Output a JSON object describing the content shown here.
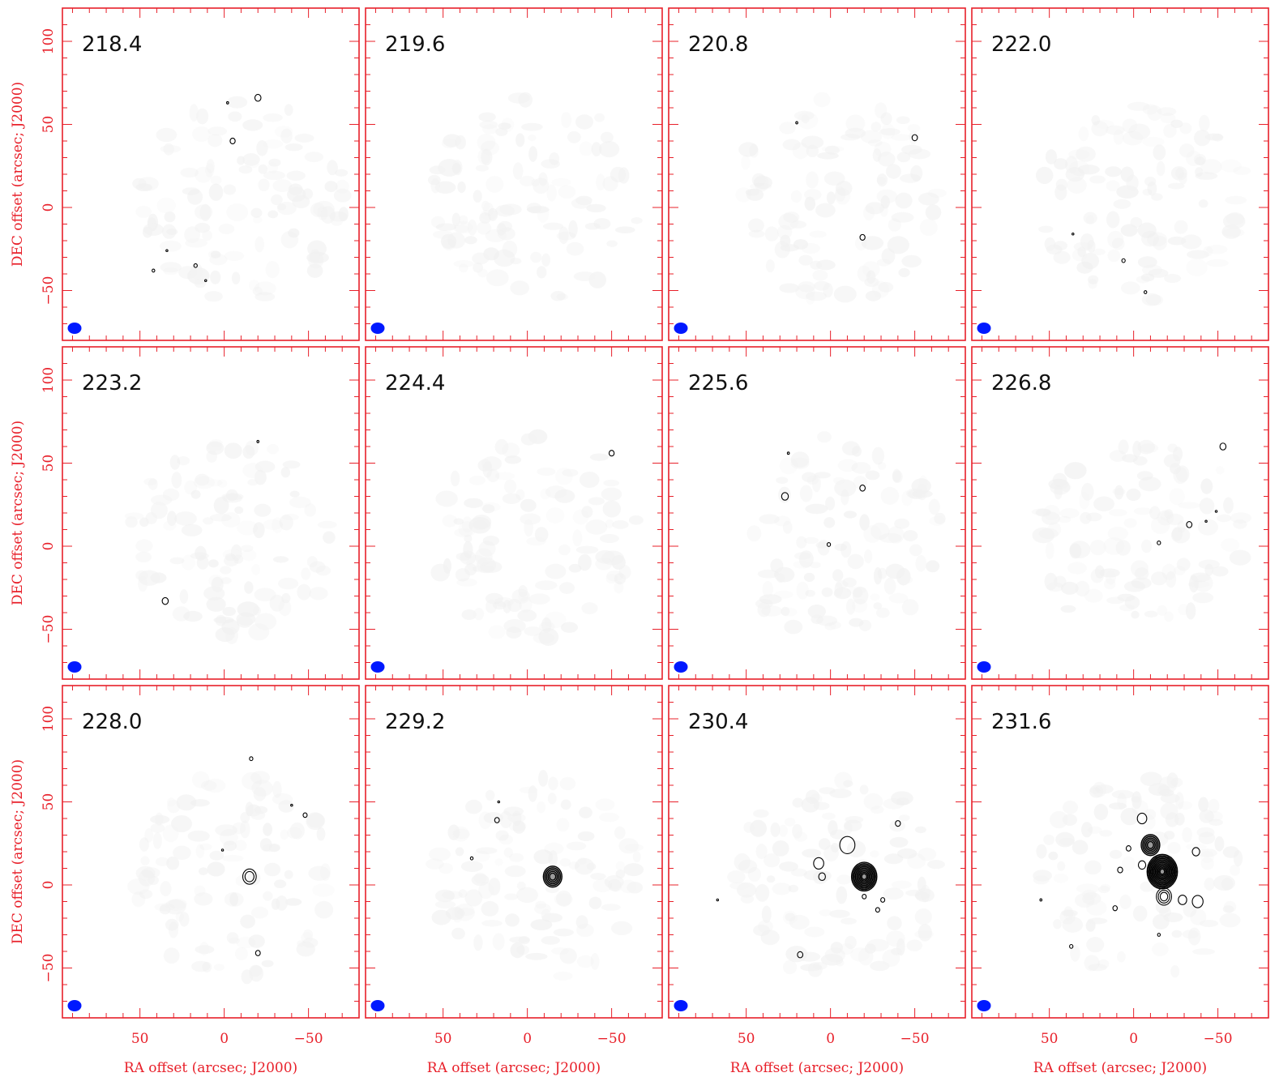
{
  "chart_data": {
    "type": "contour-map-grid",
    "xlabel": "RA offset (arcsec; J2000)",
    "ylabel": "DEC offset (arcsec; J2000)",
    "xlim": [
      96,
      -80
    ],
    "ylim": [
      -80,
      120
    ],
    "xticks": [
      50,
      0,
      -50
    ],
    "xtick_labels": [
      "50",
      "0",
      "−50"
    ],
    "yticks": [
      100,
      50,
      0,
      -50
    ],
    "ytick_labels": [
      "100",
      "50",
      "0",
      "−50"
    ],
    "colors": {
      "axis": "#e8202a",
      "beam": "#0019ff",
      "contour": "#000000",
      "noise": "#e6e6e6"
    },
    "panels": [
      {
        "label": "218.4",
        "features": [
          {
            "x": -20,
            "y": 66,
            "r": 1.8
          },
          {
            "x": -2,
            "y": 63,
            "r": 0.6
          },
          {
            "x": -5,
            "y": 40,
            "r": 1.5
          },
          {
            "x": 34,
            "y": -26,
            "r": 0.5
          },
          {
            "x": 42,
            "y": -38,
            "r": 0.8
          },
          {
            "x": 17,
            "y": -35,
            "r": 1.0
          },
          {
            "x": 11,
            "y": -44,
            "r": 0.5
          }
        ]
      },
      {
        "label": "219.6",
        "features": []
      },
      {
        "label": "220.8",
        "features": [
          {
            "x": 20,
            "y": 51,
            "r": 0.6
          },
          {
            "x": -50,
            "y": 42,
            "r": 1.6
          },
          {
            "x": -19,
            "y": -18,
            "r": 1.5
          }
        ]
      },
      {
        "label": "222.0",
        "features": [
          {
            "x": 36,
            "y": -16,
            "r": 0.5
          },
          {
            "x": 6,
            "y": -32,
            "r": 1.0
          },
          {
            "x": -7,
            "y": -51,
            "r": 0.8
          }
        ]
      },
      {
        "label": "223.2",
        "features": [
          {
            "x": -20,
            "y": 63,
            "r": 0.6
          },
          {
            "x": 35,
            "y": -33,
            "r": 1.8
          }
        ]
      },
      {
        "label": "224.4",
        "features": [
          {
            "x": -50,
            "y": 56,
            "r": 1.5
          }
        ]
      },
      {
        "label": "225.6",
        "features": [
          {
            "x": 25,
            "y": 56,
            "r": 0.6
          },
          {
            "x": 27,
            "y": 30,
            "r": 2.0
          },
          {
            "x": -19,
            "y": 35,
            "r": 1.6
          },
          {
            "x": 1,
            "y": 1,
            "r": 1.0
          }
        ]
      },
      {
        "label": "226.8",
        "features": [
          {
            "x": -53,
            "y": 60,
            "r": 1.8
          },
          {
            "x": -33,
            "y": 13,
            "r": 1.6
          },
          {
            "x": -43,
            "y": 15,
            "r": 0.5
          },
          {
            "x": -49,
            "y": 21,
            "r": 0.5
          },
          {
            "x": -15,
            "y": 2,
            "r": 1.0
          }
        ]
      },
      {
        "label": "228.0",
        "features": [
          {
            "x": -16,
            "y": 76,
            "r": 1.0
          },
          {
            "x": -40,
            "y": 48,
            "r": 0.5
          },
          {
            "x": -48,
            "y": 42,
            "r": 1.2
          },
          {
            "x": 1,
            "y": 21,
            "r": 0.5
          },
          {
            "x": -15,
            "y": 5,
            "r": 4.0,
            "n": 2
          },
          {
            "x": -20,
            "y": -41,
            "r": 1.4
          }
        ]
      },
      {
        "label": "229.2",
        "features": [
          {
            "x": 17,
            "y": 50,
            "r": 0.5
          },
          {
            "x": 18,
            "y": 39,
            "r": 1.4
          },
          {
            "x": 33,
            "y": 16,
            "r": 0.8
          },
          {
            "x": -15,
            "y": 5,
            "r": 5.5,
            "n": 5
          }
        ]
      },
      {
        "label": "230.4",
        "features": [
          {
            "x": -10,
            "y": 24,
            "r": 4.5
          },
          {
            "x": -40,
            "y": 37,
            "r": 1.5
          },
          {
            "x": 5,
            "y": 5,
            "r": 2.0
          },
          {
            "x": 67,
            "y": -9,
            "r": 0.5
          },
          {
            "x": -20,
            "y": 5,
            "r": 7.5,
            "n": 9
          },
          {
            "x": -20,
            "y": -7,
            "r": 1.2
          },
          {
            "x": -28,
            "y": -15,
            "r": 1.2
          },
          {
            "x": -31,
            "y": -9,
            "r": 1.2
          },
          {
            "x": 18,
            "y": -42,
            "r": 1.6
          },
          {
            "x": 7,
            "y": 13,
            "r": 3.0
          }
        ]
      },
      {
        "label": "231.6",
        "features": [
          {
            "x": -5,
            "y": 40,
            "r": 2.8
          },
          {
            "x": -10,
            "y": 24,
            "r": 5.5,
            "n": 5
          },
          {
            "x": -37,
            "y": 20,
            "r": 2.2
          },
          {
            "x": 3,
            "y": 22,
            "r": 1.4
          },
          {
            "x": -5,
            "y": 12,
            "r": 2.2
          },
          {
            "x": 8,
            "y": 9,
            "r": 1.5
          },
          {
            "x": -17,
            "y": 8,
            "r": 9.0,
            "n": 12
          },
          {
            "x": -18,
            "y": -7,
            "r": 4.5,
            "n": 3
          },
          {
            "x": -38,
            "y": -10,
            "r": 3.2
          },
          {
            "x": -29,
            "y": -9,
            "r": 2.5
          },
          {
            "x": 55,
            "y": -9,
            "r": 0.6
          },
          {
            "x": 11,
            "y": -14,
            "r": 1.3
          },
          {
            "x": -15,
            "y": -30,
            "r": 0.8
          },
          {
            "x": 37,
            "y": -37,
            "r": 1.0
          }
        ]
      }
    ]
  }
}
